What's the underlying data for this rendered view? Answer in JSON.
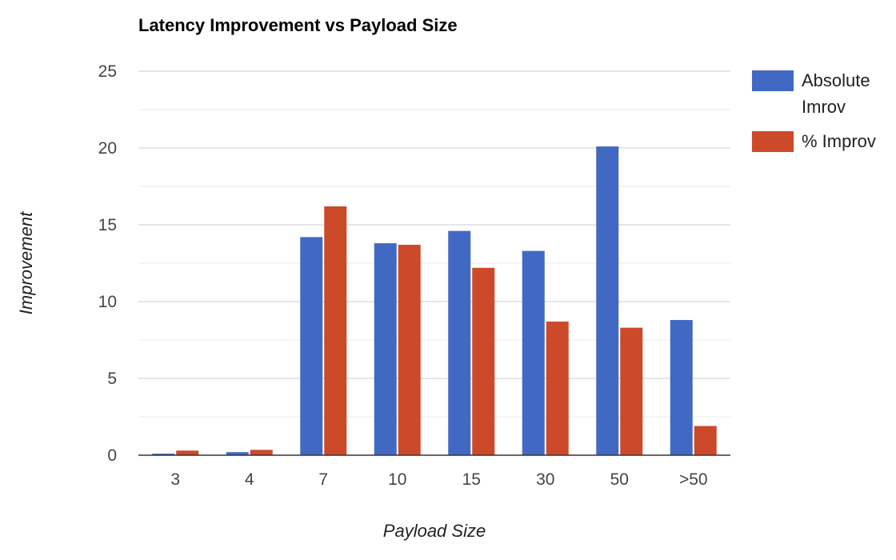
{
  "chart_data": {
    "type": "bar",
    "title": "Latency Improvement vs Payload Size",
    "xlabel": "Payload Size",
    "ylabel": "Improvement",
    "categories": [
      "3",
      "4",
      "7",
      "10",
      "15",
      "30",
      "50",
      ">50"
    ],
    "ylim": [
      0,
      25
    ],
    "yticks": [
      "0",
      "5",
      "10",
      "15",
      "20",
      "25"
    ],
    "grid": true,
    "legend_position": "right",
    "series": [
      {
        "name": "Absolute Imrov",
        "name_lines": [
          "Absolute",
          "Imrov"
        ],
        "color": "#4169c4",
        "values": [
          0.1,
          0.2,
          14.2,
          13.8,
          14.6,
          13.3,
          20.1,
          8.8
        ]
      },
      {
        "name": "% Improv",
        "name_lines": [
          "% Improv"
        ],
        "color": "#cc4a2a",
        "values": [
          0.3,
          0.35,
          16.2,
          13.7,
          12.2,
          8.7,
          8.3,
          1.9
        ]
      }
    ]
  }
}
